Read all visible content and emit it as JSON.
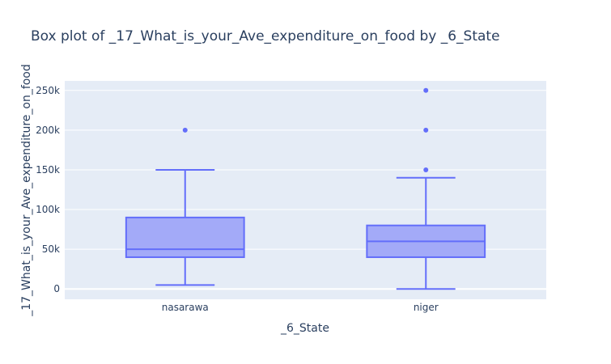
{
  "chart_data": {
    "type": "box",
    "title": "Box plot of _17_What_is_your_Ave_expenditure_on_food by _6_State",
    "xlabel": "_6_State",
    "ylabel": "_17_What_is_your_Ave_expenditure_on_food",
    "ylim": [
      -13000,
      262000
    ],
    "yticks": [
      {
        "value": 0,
        "label": "0"
      },
      {
        "value": 50000,
        "label": "50k"
      },
      {
        "value": 100000,
        "label": "100k"
      },
      {
        "value": 150000,
        "label": "150k"
      },
      {
        "value": 200000,
        "label": "200k"
      },
      {
        "value": 250000,
        "label": "250k"
      }
    ],
    "grid": true,
    "colors": {
      "background": "#e5ecf6",
      "grid": "#ffffff",
      "box_line": "#636efa",
      "box_fill": "#a3aaf8",
      "text": "#2a3f5f"
    },
    "categories": [
      "nasarawa",
      "niger"
    ],
    "boxes": [
      {
        "category": "nasarawa",
        "min": 5000,
        "q1": 40000,
        "median": 50000,
        "q3": 90000,
        "max": 150000,
        "outliers": [
          200000
        ]
      },
      {
        "category": "niger",
        "min": 0,
        "q1": 40000,
        "median": 60000,
        "q3": 80000,
        "max": 140000,
        "outliers": [
          150000,
          200000,
          250000
        ]
      }
    ]
  }
}
